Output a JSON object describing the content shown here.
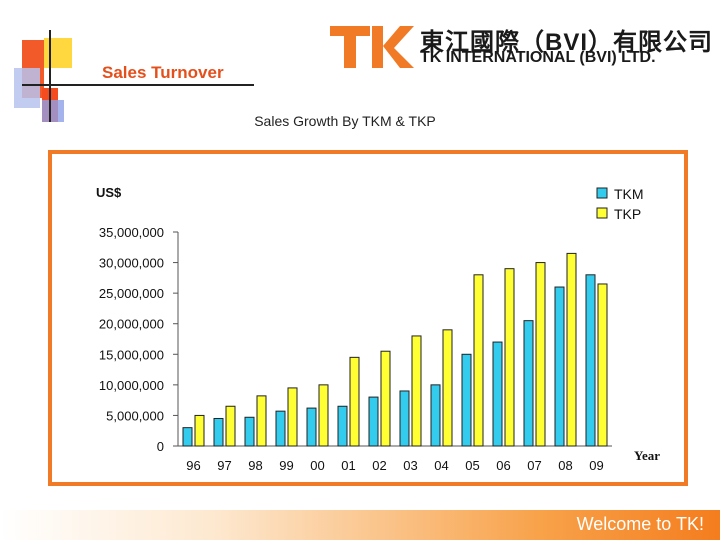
{
  "header": {
    "title": "Sales Turnover",
    "logo_chinese": "東江國際（BVI）有限公司",
    "logo_english": "TK INTERNATIONAL (BVI) LTD.",
    "logo_mark": "TK"
  },
  "colors": {
    "accent": "#e4501c",
    "frame": "#f07a26",
    "tkm": "#33ccee",
    "tkp": "#ffff33"
  },
  "chart_data": {
    "type": "bar",
    "title": "Sales Growth By TKM & TKP",
    "ylabel": "US$",
    "xlabel": "Year",
    "categories": [
      "96",
      "97",
      "98",
      "99",
      "00",
      "01",
      "02",
      "03",
      "04",
      "05",
      "06",
      "07",
      "08",
      "09"
    ],
    "series": [
      {
        "name": "TKM",
        "values": [
          3000000,
          4500000,
          4700000,
          5700000,
          6200000,
          6500000,
          8000000,
          9000000,
          10000000,
          15000000,
          17000000,
          20500000,
          26000000,
          28000000
        ]
      },
      {
        "name": "TKP",
        "values": [
          5000000,
          6500000,
          8200000,
          9500000,
          10000000,
          14500000,
          15500000,
          18000000,
          19000000,
          28000000,
          29000000,
          30000000,
          31500000,
          26500000
        ]
      }
    ],
    "ylim": [
      0,
      35000000
    ],
    "yticks": [
      "0",
      "5,000,000",
      "10,000,000",
      "15,000,000",
      "20,000,000",
      "25,000,000",
      "30,000,000",
      "35,000,000"
    ],
    "legend_position": "top-right"
  },
  "footer": {
    "text": "Welcome to TK!"
  }
}
